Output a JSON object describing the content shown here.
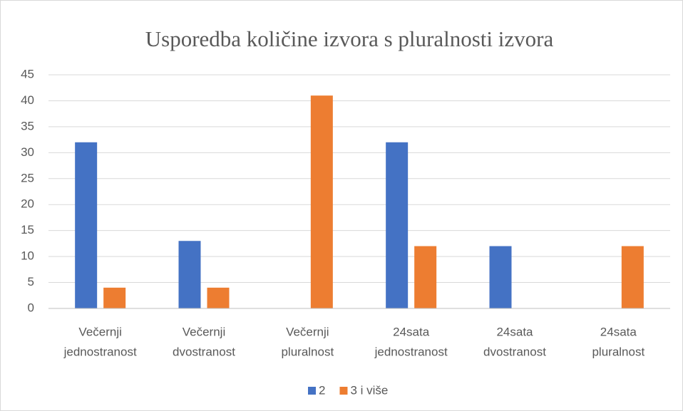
{
  "chart_data": {
    "type": "bar",
    "title": "Usporedba količine izvora s pluralnosti izvora",
    "categories": [
      [
        "Večernji",
        "jednostranost"
      ],
      [
        "Večernji",
        "dvostranost"
      ],
      [
        "Večernji",
        "pluralnost"
      ],
      [
        "24sata",
        "jednostranost"
      ],
      [
        "24sata",
        "dvostranost"
      ],
      [
        "24sata",
        "pluralnost"
      ]
    ],
    "series": [
      {
        "name": "2",
        "color": "#4472c4",
        "values": [
          32,
          13,
          0,
          32,
          12,
          0
        ]
      },
      {
        "name": "3 i više",
        "color": "#ed7d31",
        "values": [
          4,
          4,
          41,
          12,
          0,
          12
        ]
      }
    ],
    "ylim": [
      0,
      45
    ],
    "yticks": [
      0,
      5,
      10,
      15,
      20,
      25,
      30,
      35,
      40,
      45
    ],
    "grid": true,
    "legend": "bottom"
  }
}
